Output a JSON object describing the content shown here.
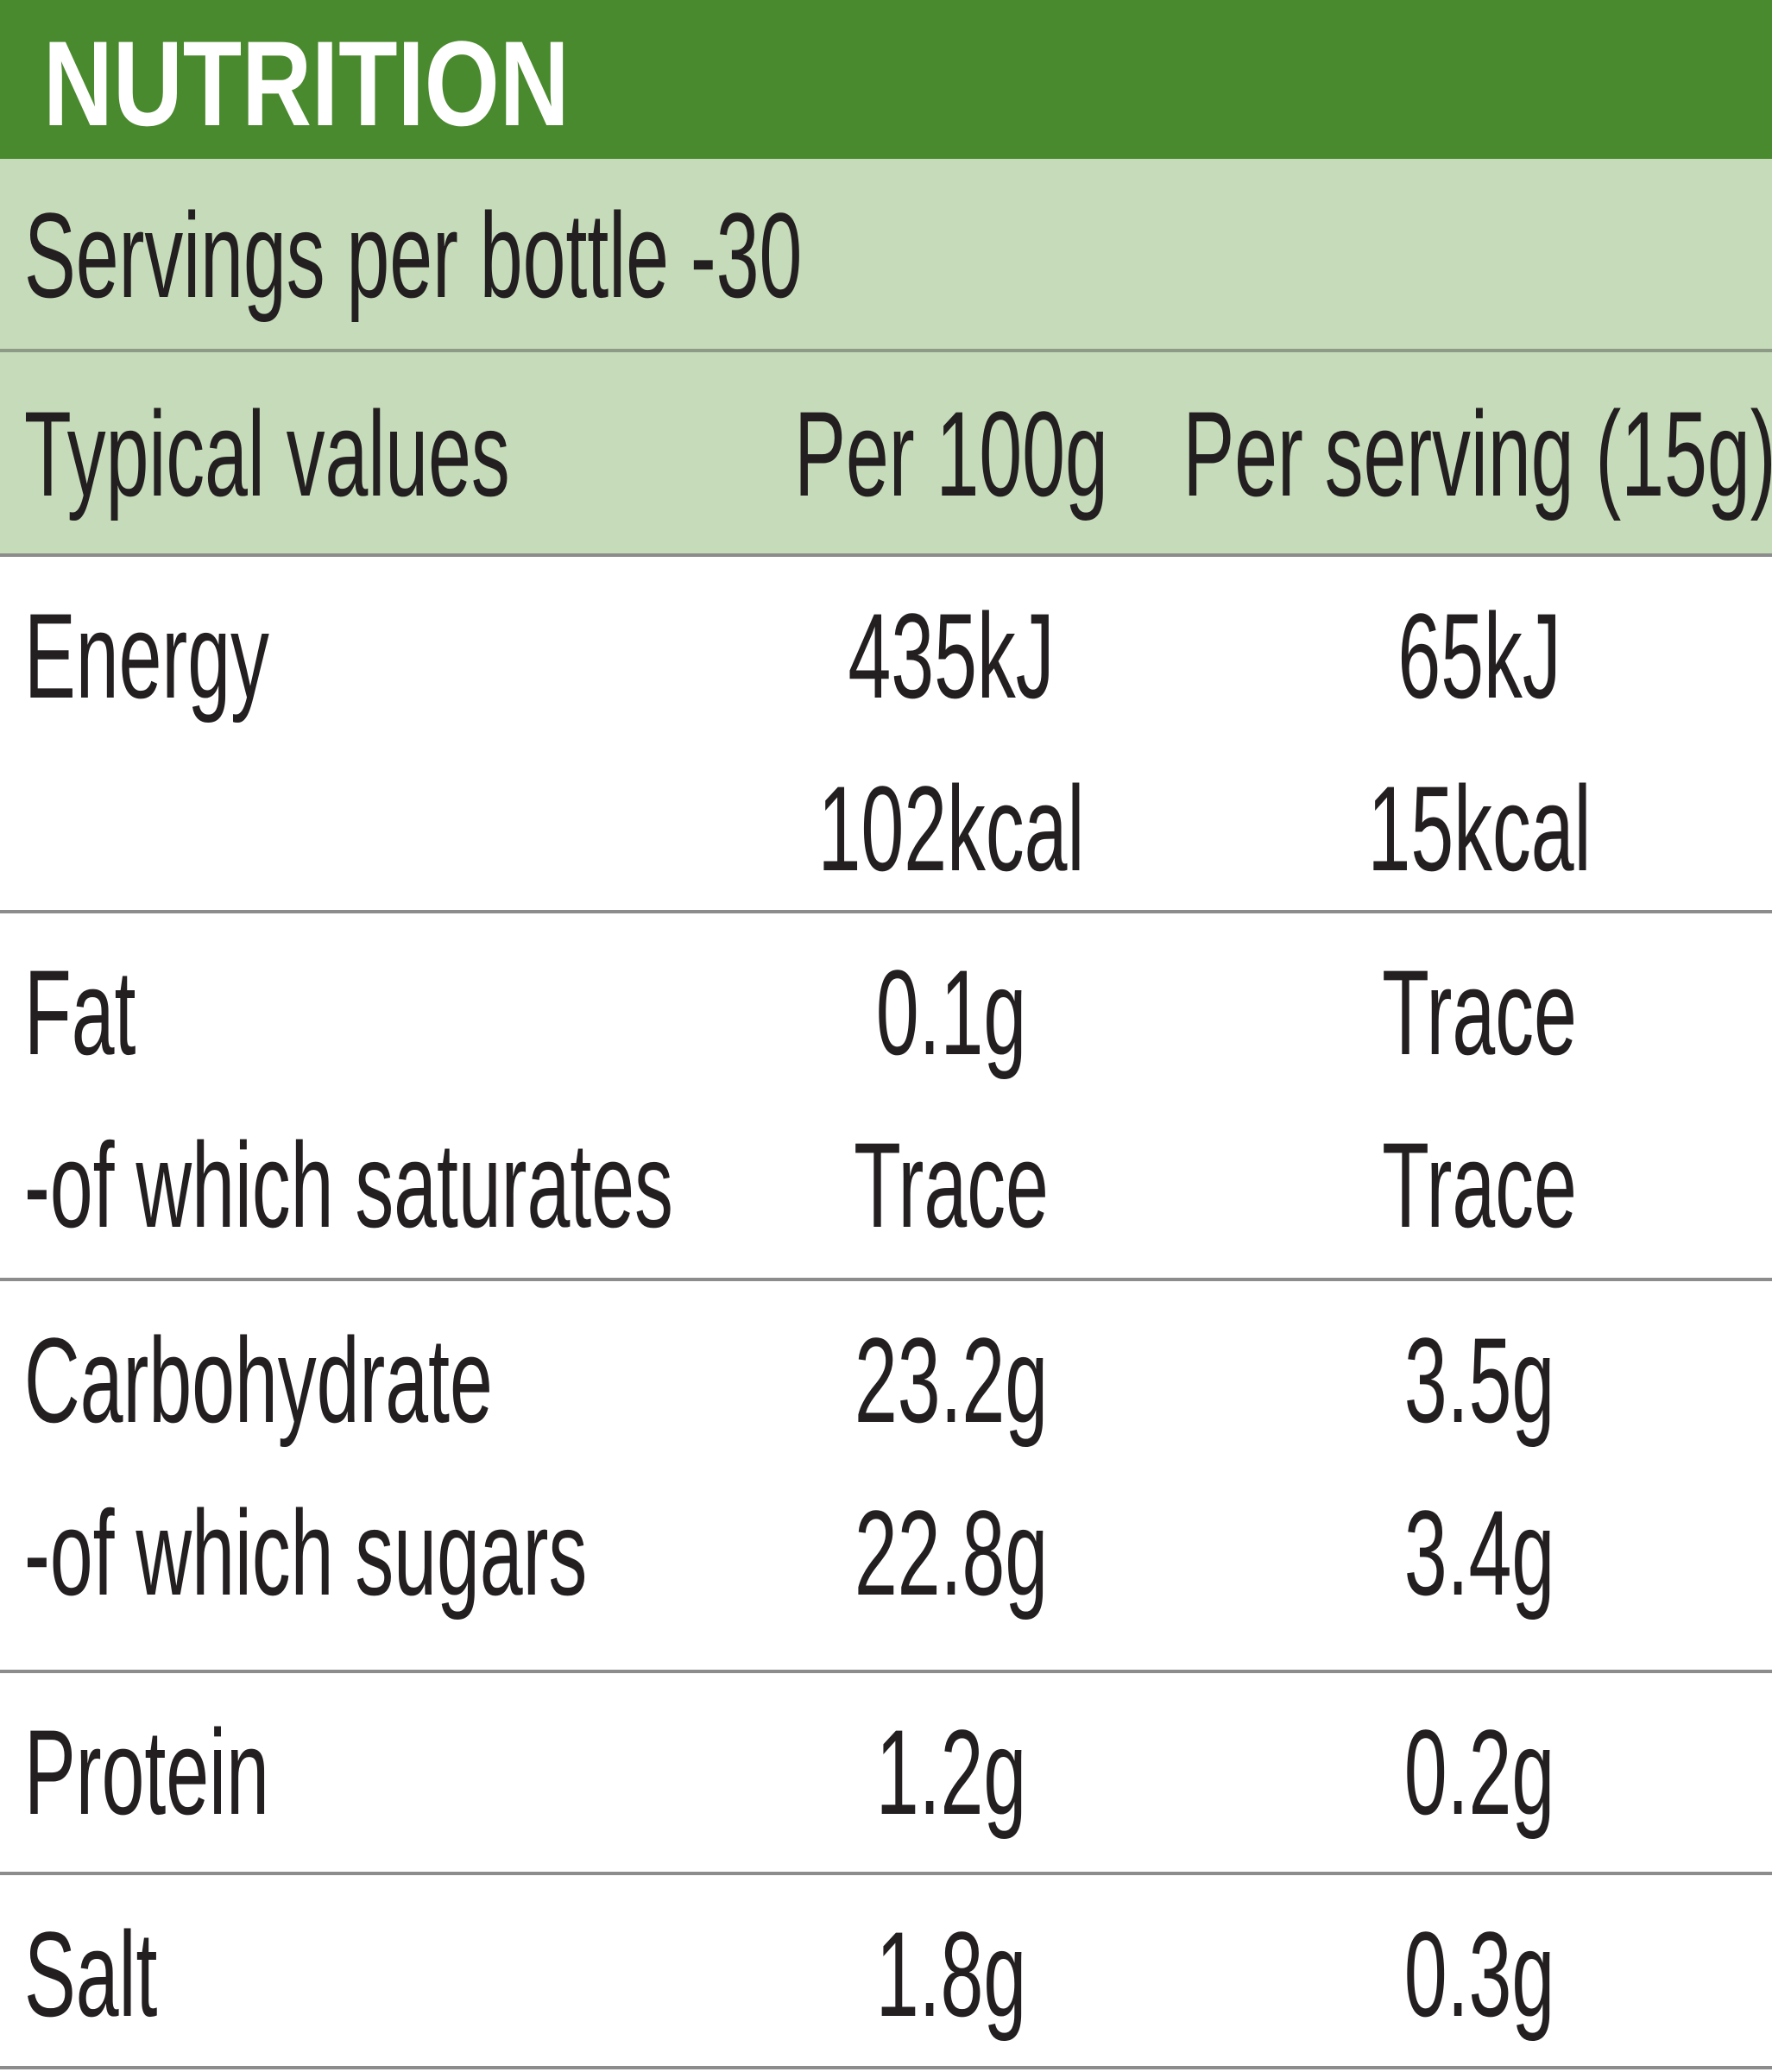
{
  "header": {
    "title": "NUTRITION",
    "servings": "Servings per bottle -30"
  },
  "table": {
    "columns": [
      "Typical values",
      "Per 100g",
      "Per serving (15g)"
    ],
    "rows": [
      [
        [
          "Energy"
        ],
        [
          "435kJ",
          "102kcal"
        ],
        [
          "65kJ",
          "15kcal"
        ]
      ],
      [
        [
          "Fat",
          "-of which saturates"
        ],
        [
          "0.1g",
          "Trace"
        ],
        [
          "Trace",
          "Trace"
        ]
      ],
      [
        [
          "Carbohydrate",
          "-of which sugars"
        ],
        [
          "23.2g",
          "22.8g"
        ],
        [
          "3.5g",
          "3.4g"
        ]
      ],
      [
        [
          "Protein"
        ],
        [
          "1.2g"
        ],
        [
          "0.2g"
        ]
      ],
      [
        [
          "Salt"
        ],
        [
          "1.8g"
        ],
        [
          "0.3g"
        ]
      ]
    ]
  }
}
